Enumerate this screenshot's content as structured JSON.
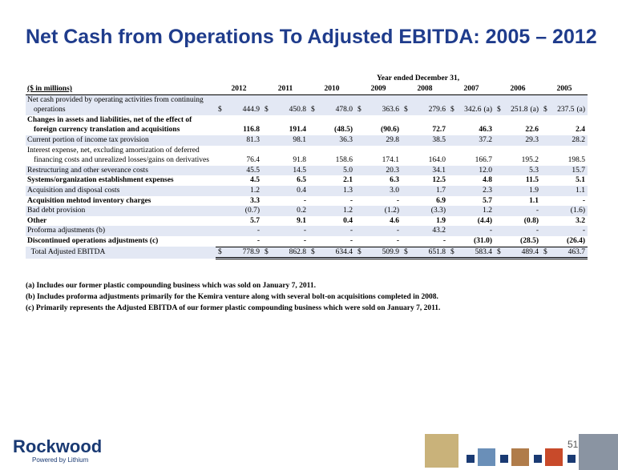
{
  "title": "Net Cash from Operations To Adjusted EBITDA: 2005 – 2012",
  "table": {
    "period_header": "Year ended December 31,",
    "columns": [
      "($ in millions)",
      "2012",
      "2011",
      "2010",
      "2009",
      "2008",
      "2007",
      "2006",
      "2005"
    ],
    "rows": [
      {
        "label": [
          "Net cash provided by operating activities from continuing",
          "operations"
        ],
        "shaded": true,
        "bold": false,
        "cells": [
          {
            "sign": "$",
            "value": "444.9"
          },
          {
            "sign": "$",
            "value": "450.8"
          },
          {
            "sign": "$",
            "value": "478.0"
          },
          {
            "sign": "$",
            "value": "363.6"
          },
          {
            "sign": "$",
            "value": "279.6"
          },
          {
            "sign": "$",
            "value": "342.6",
            "note": "(a)"
          },
          {
            "sign": "$",
            "value": "251.8",
            "note": "(a)"
          },
          {
            "sign": "$",
            "value": "237.5",
            "note": "(a)"
          }
        ]
      },
      {
        "label": [
          "Changes in assets and liabilities, net of the effect of",
          "foreign currency translation and acquisitions"
        ],
        "shaded": false,
        "bold": true,
        "cells": [
          {
            "value": "116.8"
          },
          {
            "value": "191.4"
          },
          {
            "value": "(48.5)"
          },
          {
            "value": "(90.6)"
          },
          {
            "value": "72.7"
          },
          {
            "value": "46.3"
          },
          {
            "value": "22.6"
          },
          {
            "value": "2.4"
          }
        ]
      },
      {
        "label": [
          "Current portion of income tax provision"
        ],
        "shaded": true,
        "bold": false,
        "cells": [
          {
            "value": "81.3"
          },
          {
            "value": "98.1"
          },
          {
            "value": "36.3"
          },
          {
            "value": "29.8"
          },
          {
            "value": "38.5"
          },
          {
            "value": "37.2"
          },
          {
            "value": "29.3"
          },
          {
            "value": "28.2"
          }
        ]
      },
      {
        "label": [
          "Interest expense, net, excluding amortization of deferred",
          "financing costs and unrealized losses/gains on derivatives"
        ],
        "shaded": false,
        "bold": false,
        "cells": [
          {
            "value": "76.4"
          },
          {
            "value": "91.8"
          },
          {
            "value": "158.6"
          },
          {
            "value": "174.1"
          },
          {
            "value": "164.0"
          },
          {
            "value": "166.7"
          },
          {
            "value": "195.2"
          },
          {
            "value": "198.5"
          }
        ]
      },
      {
        "label": [
          "Restructuring and other severance costs"
        ],
        "shaded": true,
        "bold": false,
        "cells": [
          {
            "value": "45.5"
          },
          {
            "value": "14.5"
          },
          {
            "value": "5.0"
          },
          {
            "value": "20.3"
          },
          {
            "value": "34.1"
          },
          {
            "value": "12.0"
          },
          {
            "value": "5.3"
          },
          {
            "value": "15.7"
          }
        ]
      },
      {
        "label": [
          "Systems/organization establishment expenses"
        ],
        "shaded": false,
        "bold": true,
        "cells": [
          {
            "value": "4.5"
          },
          {
            "value": "6.5"
          },
          {
            "value": "2.1"
          },
          {
            "value": "6.3"
          },
          {
            "value": "12.5"
          },
          {
            "value": "4.8"
          },
          {
            "value": "11.5"
          },
          {
            "value": "5.1"
          }
        ]
      },
      {
        "label": [
          "Acquisition and disposal costs"
        ],
        "shaded": true,
        "bold": false,
        "cells": [
          {
            "value": "1.2"
          },
          {
            "value": "0.4"
          },
          {
            "value": "1.3"
          },
          {
            "value": "3.0"
          },
          {
            "value": "1.7"
          },
          {
            "value": "2.3"
          },
          {
            "value": "1.9"
          },
          {
            "value": "1.1"
          }
        ]
      },
      {
        "label": [
          "Acquisition mehtod inventory charges"
        ],
        "shaded": false,
        "bold": true,
        "cells": [
          {
            "value": "3.3"
          },
          {
            "value": "-"
          },
          {
            "value": "-"
          },
          {
            "value": "-"
          },
          {
            "value": "6.9"
          },
          {
            "value": "5.7"
          },
          {
            "value": "1.1"
          },
          {
            "value": "-"
          }
        ]
      },
      {
        "label": [
          "Bad debt provision"
        ],
        "shaded": true,
        "bold": false,
        "cells": [
          {
            "value": "(0.7)"
          },
          {
            "value": "0.2"
          },
          {
            "value": "1.2"
          },
          {
            "value": "(1.2)"
          },
          {
            "value": "(3.3)"
          },
          {
            "value": "1.2"
          },
          {
            "value": "-"
          },
          {
            "value": "(1.6)"
          }
        ]
      },
      {
        "label": [
          "Other"
        ],
        "shaded": false,
        "bold": true,
        "cells": [
          {
            "value": "5.7"
          },
          {
            "value": "9.1"
          },
          {
            "value": "0.4"
          },
          {
            "value": "4.6"
          },
          {
            "value": "1.9"
          },
          {
            "value": "(4.4)"
          },
          {
            "value": "(0.8)"
          },
          {
            "value": "3.2"
          }
        ]
      },
      {
        "label": [
          "Proforma adjustments (b)"
        ],
        "shaded": true,
        "bold": false,
        "cells": [
          {
            "value": "-"
          },
          {
            "value": "-"
          },
          {
            "value": "-"
          },
          {
            "value": "-"
          },
          {
            "value": "43.2"
          },
          {
            "value": "-"
          },
          {
            "value": "-"
          },
          {
            "value": "-"
          }
        ]
      },
      {
        "label": [
          "Discontinued operations adjustments (c)"
        ],
        "shaded": false,
        "bold": true,
        "cells": [
          {
            "value": "-"
          },
          {
            "value": "-"
          },
          {
            "value": "-"
          },
          {
            "value": "-"
          },
          {
            "value": "-"
          },
          {
            "value": "(31.0)"
          },
          {
            "value": "(28.5)"
          },
          {
            "value": "(26.4)"
          }
        ]
      },
      {
        "label": [
          "  Total Adjusted EBITDA"
        ],
        "shaded": true,
        "bold": false,
        "total": true,
        "cells": [
          {
            "sign": "$",
            "value": "778.9"
          },
          {
            "sign": "$",
            "value": "862.8"
          },
          {
            "sign": "$",
            "value": "634.4"
          },
          {
            "sign": "$",
            "value": "509.9"
          },
          {
            "sign": "$",
            "value": "651.8"
          },
          {
            "sign": "$",
            "value": "583.4"
          },
          {
            "sign": "$",
            "value": "489.4"
          },
          {
            "sign": "$",
            "value": "463.7"
          }
        ]
      }
    ]
  },
  "footnotes": [
    "(a) Includes our former plastic compounding business which was sold on January 7, 2011.",
    "(b) Includes proforma adjustments primarily for the Kemira venture along with several bolt-on acquisitions completed in 2008.",
    "(c) Primarily represents the Adjusted EBITDA of our former plastic compounding  business which were sold on January 7, 2011."
  ],
  "logo": {
    "name": "Rockwood",
    "tagline": "Powered by Lithium"
  },
  "page_number": "51"
}
